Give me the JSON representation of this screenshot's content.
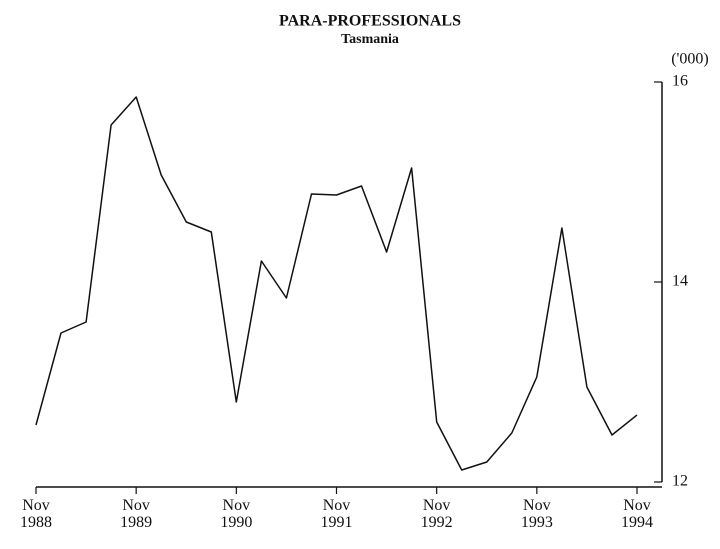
{
  "chart_data": {
    "type": "line",
    "title": "PARA-PROFESSIONALS",
    "subtitle": "Tasmania",
    "y_axis_label": "('000)",
    "categories": [
      "Nov 1988",
      null,
      null,
      null,
      "Nov 1989",
      null,
      null,
      null,
      "Nov 1990",
      null,
      null,
      null,
      "Nov 1991",
      null,
      null,
      null,
      "Nov 1992",
      null,
      null,
      null,
      "Nov 1993",
      null,
      null,
      null,
      "Nov 1994"
    ],
    "series": [
      {
        "name": "Para-professionals",
        "color": "#111111",
        "values": [
          12.57,
          13.49,
          13.6,
          15.57,
          15.85,
          15.07,
          14.6,
          14.5,
          12.8,
          14.21,
          13.84,
          14.88,
          14.87,
          14.96,
          14.3,
          15.14,
          12.6,
          12.12,
          12.2,
          12.49,
          13.05,
          14.54,
          12.95,
          12.47,
          12.67
        ]
      }
    ],
    "ylim": [
      12,
      16
    ],
    "yticks": [
      12,
      14,
      16
    ],
    "y_axis_side": "right"
  }
}
